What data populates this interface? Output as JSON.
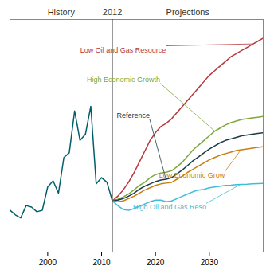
{
  "chart_data": {
    "type": "line",
    "x": [
      1993,
      1994,
      1995,
      1996,
      1997,
      1998,
      1999,
      2000,
      2001,
      2002,
      2003,
      2004,
      2005,
      2006,
      2007,
      2008,
      2009,
      2010,
      2011,
      2012,
      2013,
      2014,
      2015,
      2016,
      2017,
      2018,
      2019,
      2020,
      2021,
      2022,
      2023,
      2024,
      2025,
      2026,
      2027,
      2028,
      2029,
      2030,
      2031,
      2032,
      2033,
      2034,
      2035,
      2036,
      2037,
      2038,
      2039,
      2040
    ],
    "series": [
      {
        "name": "History",
        "color": "#005f6b",
        "values": [
          2.2,
          1.9,
          1.7,
          2.5,
          2.4,
          2.1,
          2.2,
          3.7,
          4.1,
          3.3,
          5.6,
          5.9,
          8.6,
          6.7,
          7.1,
          8.9,
          3.9,
          4.3,
          4.0,
          2.8,
          null,
          null,
          null,
          null,
          null,
          null,
          null,
          null,
          null,
          null,
          null,
          null,
          null,
          null,
          null,
          null,
          null,
          null,
          null,
          null,
          null,
          null,
          null,
          null,
          null,
          null,
          null,
          null
        ]
      },
      {
        "name": "Low Oil and Gas Resource",
        "color": "#b5373a",
        "values": [
          null,
          null,
          null,
          null,
          null,
          null,
          null,
          null,
          null,
          null,
          null,
          null,
          null,
          null,
          null,
          null,
          null,
          null,
          null,
          2.8,
          3.1,
          3.5,
          4.0,
          4.6,
          5.3,
          6.0,
          6.7,
          7.2,
          7.6,
          7.8,
          8.1,
          8.5,
          8.9,
          9.3,
          9.7,
          10.1,
          10.5,
          10.9,
          11.2,
          11.5,
          11.8,
          12.1,
          12.3,
          12.5,
          12.7,
          12.9,
          13.1,
          13.3
        ]
      },
      {
        "name": "High Economic Growth",
        "color": "#7da83a",
        "values": [
          null,
          null,
          null,
          null,
          null,
          null,
          null,
          null,
          null,
          null,
          null,
          null,
          null,
          null,
          null,
          null,
          null,
          null,
          null,
          2.8,
          2.9,
          3.05,
          3.25,
          3.5,
          3.8,
          4.0,
          4.3,
          4.5,
          4.6,
          4.65,
          4.75,
          5.0,
          5.3,
          5.7,
          6.1,
          6.4,
          6.7,
          7.0,
          7.3,
          7.5,
          7.7,
          7.85,
          7.95,
          8.05,
          8.1,
          8.15,
          8.2,
          8.25
        ]
      },
      {
        "name": "Reference",
        "color": "#1a3a4a",
        "values": [
          null,
          null,
          null,
          null,
          null,
          null,
          null,
          null,
          null,
          null,
          null,
          null,
          null,
          null,
          null,
          null,
          null,
          null,
          null,
          2.8,
          2.85,
          2.95,
          3.1,
          3.3,
          3.55,
          3.75,
          3.9,
          4.05,
          4.15,
          4.2,
          4.3,
          4.55,
          4.8,
          5.1,
          5.4,
          5.65,
          5.9,
          6.15,
          6.35,
          6.55,
          6.7,
          6.8,
          6.9,
          7.0,
          7.05,
          7.1,
          7.15,
          7.2
        ]
      },
      {
        "name": "Low Economic Grow",
        "color": "#c97d10",
        "values": [
          null,
          null,
          null,
          null,
          null,
          null,
          null,
          null,
          null,
          null,
          null,
          null,
          null,
          null,
          null,
          null,
          null,
          null,
          null,
          2.8,
          2.75,
          2.8,
          2.95,
          3.1,
          3.3,
          3.5,
          3.65,
          3.8,
          3.9,
          3.95,
          4.0,
          4.2,
          4.4,
          4.65,
          4.85,
          5.05,
          5.25,
          5.45,
          5.6,
          5.75,
          5.85,
          5.95,
          6.05,
          6.1,
          6.15,
          6.2,
          6.25,
          6.3
        ]
      },
      {
        "name": "High Oil and Gas Reso",
        "color": "#40bcd8",
        "values": [
          null,
          null,
          null,
          null,
          null,
          null,
          null,
          null,
          null,
          null,
          null,
          null,
          null,
          null,
          null,
          null,
          null,
          null,
          null,
          2.8,
          2.5,
          2.25,
          2.2,
          2.3,
          2.45,
          2.6,
          2.75,
          2.85,
          2.85,
          2.75,
          2.8,
          2.95,
          3.1,
          3.25,
          3.4,
          3.5,
          3.55,
          3.65,
          3.7,
          3.75,
          3.8,
          3.82,
          3.85,
          3.87,
          3.88,
          3.9,
          3.92,
          3.93
        ]
      }
    ],
    "xlim": [
      1993,
      2040
    ],
    "xticks": [
      2000,
      2010,
      2020,
      2030
    ],
    "ylim": [
      -0.5,
      14.5
    ],
    "yticks": [],
    "grid": false,
    "tick_labels": "x",
    "vline": {
      "x": 2012,
      "label": "2012"
    },
    "region_labels": {
      "left": "History",
      "right": "Projections"
    },
    "annotations": [
      {
        "text": "Low Oil and Gas Resource",
        "x": 2038,
        "y": 12.9
      },
      {
        "text": "High Economic Growth",
        "x": 2031,
        "y": 7.3
      },
      {
        "text": "Reference",
        "x": 2022,
        "y": 4.2
      },
      {
        "text": "Low Economic Grow",
        "x": 2036,
        "y": 6.1
      },
      {
        "text": "High Oil and Gas Reso",
        "x": 2036,
        "y": 3.87
      }
    ]
  }
}
